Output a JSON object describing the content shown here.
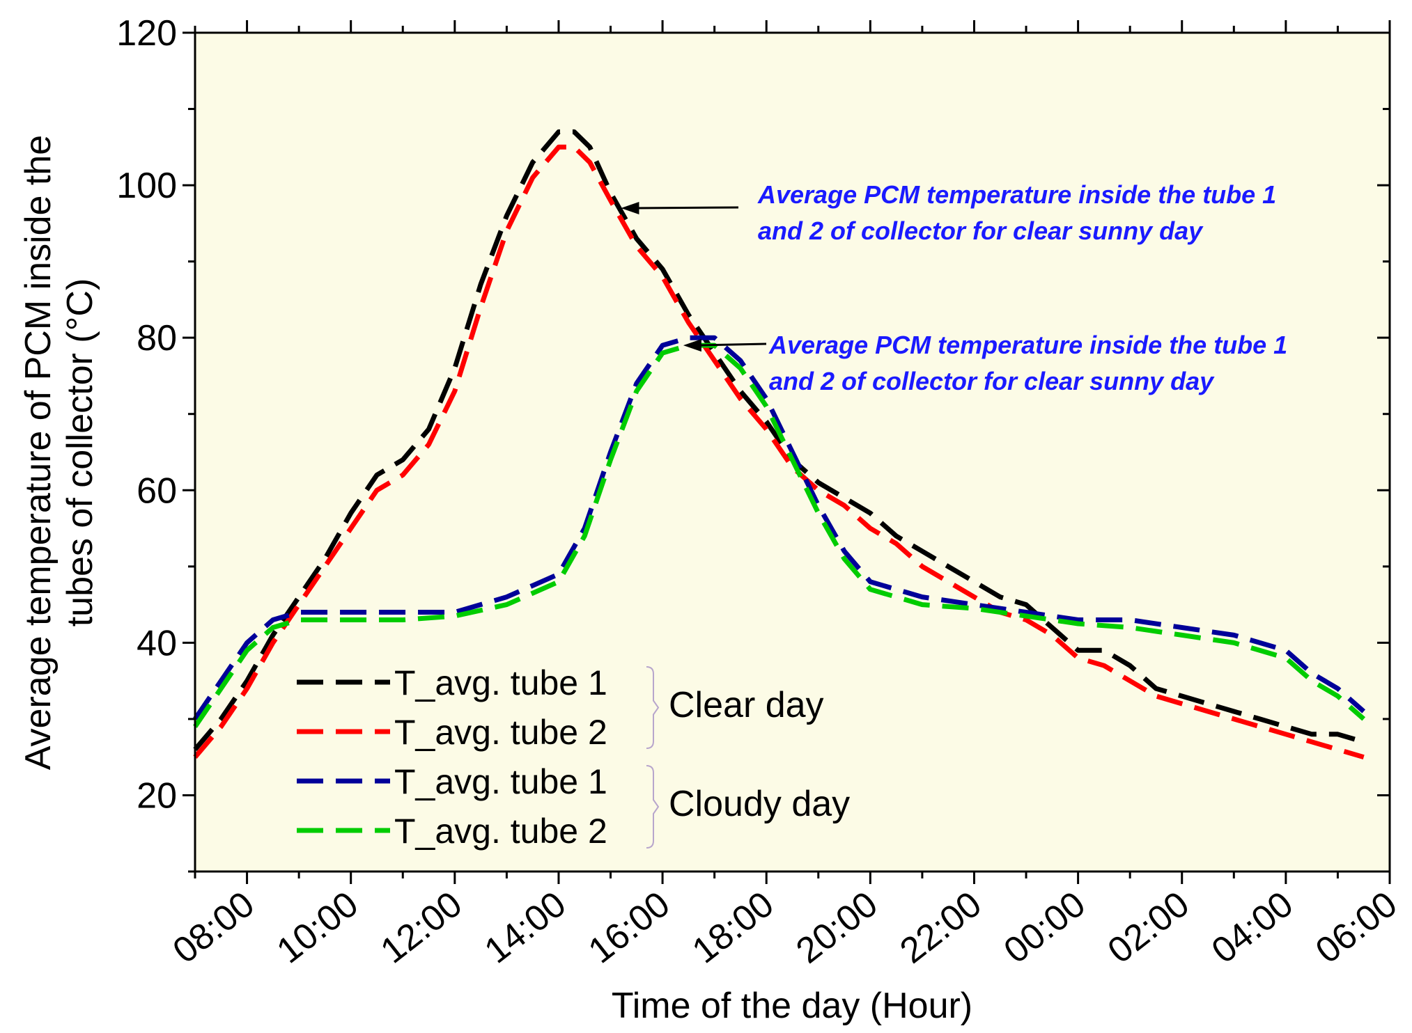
{
  "chart_data": {
    "type": "line",
    "title": "",
    "xlabel": "Time of the day (Hour)",
    "ylabel_line1": "Average temperature of PCM inside the",
    "ylabel_line2": "tubes of collector (°C)",
    "xlim": [
      7,
      30
    ],
    "ylim": [
      10,
      120
    ],
    "x_ticks": [
      8,
      10,
      12,
      14,
      16,
      18,
      20,
      22,
      24,
      26,
      28,
      30
    ],
    "x_tick_labels": [
      "08:00",
      "10:00",
      "12:00",
      "14:00",
      "16:00",
      "18:00",
      "20:00",
      "22:00",
      "00:00",
      "02:00",
      "04:00",
      "06:00"
    ],
    "y_ticks": [
      20,
      40,
      60,
      80,
      100,
      120
    ],
    "y_tick_labels": [
      "20",
      "40",
      "60",
      "80",
      "100",
      "120"
    ],
    "background": "#fcfbe6",
    "series": [
      {
        "name": "T_avg. tube 1",
        "group": "Clear day",
        "color": "#000000",
        "x": [
          7,
          7.5,
          8,
          8.5,
          9,
          9.5,
          10,
          10.5,
          11,
          11.5,
          12,
          12.5,
          13,
          13.5,
          14,
          14.3,
          14.6,
          15,
          15.5,
          16,
          16.5,
          17,
          17.5,
          18,
          18.5,
          19,
          19.5,
          20,
          20.5,
          21,
          21.5,
          22,
          22.5,
          23,
          23.5,
          24,
          24.5,
          25,
          25.5,
          26,
          26.5,
          27,
          27.5,
          28,
          28.5,
          29,
          29.5
        ],
        "y": [
          26,
          30,
          35,
          41,
          46,
          51,
          57,
          62,
          64,
          68,
          76,
          87,
          96,
          103,
          107,
          107,
          105,
          99,
          93,
          89,
          83,
          78,
          73,
          69,
          64,
          61,
          59,
          57,
          54,
          52,
          50,
          48,
          46,
          45,
          42,
          39,
          39,
          37,
          34,
          33,
          32,
          31,
          30,
          29,
          28,
          28,
          27
        ]
      },
      {
        "name": "T_avg. tube 2",
        "group": "Clear day",
        "color": "#ff0000",
        "x": [
          7,
          7.5,
          8,
          8.5,
          9,
          9.5,
          10,
          10.5,
          11,
          11.5,
          12,
          12.5,
          13,
          13.5,
          14,
          14.3,
          14.6,
          15,
          15.5,
          16,
          16.5,
          17,
          17.5,
          18,
          18.5,
          19,
          19.5,
          20,
          20.5,
          21,
          21.5,
          22,
          22.5,
          23,
          23.5,
          24,
          24.5,
          25,
          25.5,
          26,
          26.5,
          27,
          27.5,
          28,
          28.5,
          29,
          29.5
        ],
        "y": [
          25,
          29,
          34,
          40,
          45,
          50,
          55,
          60,
          62,
          66,
          73,
          84,
          94,
          101,
          105,
          105,
          103,
          98,
          92,
          88,
          82,
          77,
          72,
          68,
          63,
          60,
          58,
          55,
          53,
          50,
          48,
          46,
          44,
          43,
          41,
          38,
          37,
          35,
          33,
          32,
          31,
          30,
          29,
          28,
          27,
          26,
          25
        ]
      },
      {
        "name": "T_avg. tube 1",
        "group": "Cloudy day",
        "color": "#000099",
        "x": [
          7,
          7.5,
          8,
          8.5,
          9,
          9.5,
          10,
          11,
          12,
          13,
          14,
          14.5,
          15,
          15.5,
          16,
          16.5,
          17,
          17.5,
          18,
          18.5,
          19,
          19.5,
          20,
          20.5,
          21,
          22,
          23,
          24,
          25,
          26,
          27,
          28,
          28.5,
          29,
          29.5
        ],
        "y": [
          30,
          35,
          40,
          43,
          44,
          44,
          44,
          44,
          44,
          46,
          49,
          55,
          65,
          74,
          79,
          80,
          80,
          77,
          72,
          65,
          58,
          52,
          48,
          47,
          46,
          45,
          44,
          43,
          43,
          42,
          41,
          39,
          36,
          34,
          31
        ]
      },
      {
        "name": "T_avg. tube 2",
        "group": "Cloudy day",
        "color": "#00cc00",
        "x": [
          7,
          7.5,
          8,
          8.5,
          9,
          9.5,
          10,
          11,
          12,
          13,
          14,
          14.5,
          15,
          15.5,
          16,
          16.5,
          17,
          17.5,
          18,
          18.5,
          19,
          19.5,
          20,
          20.5,
          21,
          22,
          23,
          24,
          25,
          26,
          27,
          28,
          28.5,
          29,
          29.5
        ],
        "y": [
          29,
          34,
          39,
          42,
          43,
          43,
          43,
          43,
          43.5,
          45,
          48,
          54,
          64,
          73,
          78,
          79,
          79,
          76,
          71,
          64,
          57,
          51,
          47,
          46,
          45,
          44.5,
          43.5,
          42.5,
          42,
          41,
          40,
          38,
          35,
          33,
          30
        ]
      }
    ],
    "legend": {
      "placement": "bottom-left",
      "entries": [
        "T_avg. tube 1",
        "T_avg. tube 2",
        "T_avg. tube 1",
        "T_avg. tube 2"
      ],
      "groups": [
        "Clear day",
        "Cloudy day"
      ]
    },
    "annotations": [
      {
        "line1": "Average PCM temperature inside the tube 1",
        "line2": "and 2 of collector for clear sunny day",
        "color": "#1a1aff",
        "arrow_target": [
          15.2,
          97
        ]
      },
      {
        "line1": "Average PCM temperature inside the tube 1",
        "line2": "and 2 of collector for clear sunny day",
        "color": "#1a1aff",
        "arrow_target": [
          16.4,
          79
        ]
      }
    ]
  }
}
